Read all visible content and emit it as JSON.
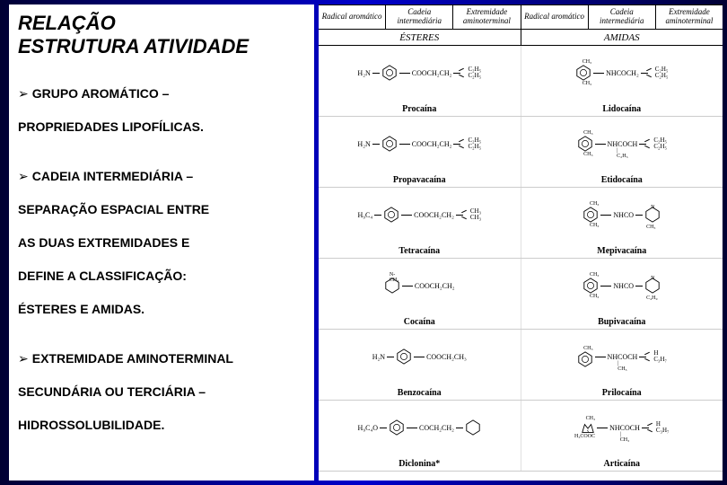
{
  "left": {
    "title_line1": "RELAÇÃO",
    "title_line2": "ESTRUTURA ATIVIDADE",
    "b1": "GRUPO AROMÁTICO –",
    "t1": "PROPRIEDADES LIPOFÍLICAS.",
    "b2": "CADEIA INTERMEDIÁRIA –",
    "t2": "SEPARAÇÃO ESPACIAL ENTRE",
    "t3": "AS DUAS EXTREMIDADES E",
    "t4": "DEFINE A CLASSIFICAÇÃO:",
    "t5": "ÉSTERES E AMIDAS.",
    "b3": "EXTREMIDADE AMINOTERMINAL",
    "t6": "SECUNDÁRIA OU TERCIÁRIA –",
    "t7": "HIDROSSOLUBILIDADE."
  },
  "table": {
    "headers": [
      "Radical aromático",
      "Cadeia intermediária",
      "Extremidade aminoterminal",
      "Radical aromático",
      "Cadeia intermediária",
      "Extremidade aminoterminal"
    ],
    "sections": [
      "ÉSTERES",
      "AMIDAS"
    ],
    "rows": [
      {
        "left_name": "Procaína",
        "right_name": "Lidocaína",
        "left": {
          "pre": "H₂N",
          "mid": "COOCH₂CH₂",
          "n": [
            "C₂H₅",
            "C₂H₅"
          ]
        },
        "right": {
          "preTop": "CH₃",
          "preBot": "CH₃",
          "mid": "NHCOCH₂",
          "n": [
            "C₂H₅",
            "C₂H₅"
          ]
        }
      },
      {
        "left_name": "Propavacaína",
        "right_name": "Etidocaína",
        "left": {
          "pre": "H₂N",
          "mid": "COOCH₂CH₂",
          "preExtra": "C₂H₅O",
          "n": [
            "C₂H₅",
            "C₂H₅"
          ]
        },
        "right": {
          "preTop": "CH₃",
          "preBot": "CH₃",
          "mid": "NHCOCH",
          "midSub": "C₂H₅",
          "n": [
            "C₂H₅",
            "C₂H₅"
          ]
        }
      },
      {
        "left_name": "Tetracaína",
        "right_name": "Mepivacaína",
        "left": {
          "pre": "H₉C₄",
          "preN": "H",
          "mid": "COOCH₂CH₂",
          "n": [
            "CH₃",
            "CH₃"
          ]
        },
        "right": {
          "preTop": "CH₃",
          "preBot": "CH₃",
          "mid": "NHCO",
          "ring": true,
          "ringSub": "CH₃"
        }
      },
      {
        "left_name": "Cocaína",
        "right_name": "Bupivacaína",
        "left": {
          "bicycle": true,
          "mid": "COOCH₂CH₂",
          "bot": "COO"
        },
        "right": {
          "preTop": "CH₃",
          "preBot": "CH₃",
          "mid": "NHCO",
          "ring": true,
          "ringSub": "C₄H₉"
        }
      },
      {
        "left_name": "Benzocaína",
        "right_name": "Prilocaína",
        "left": {
          "pre": "H₂N",
          "mid": "COOCH₂CH₃"
        },
        "right": {
          "preTop": "CH₃",
          "mid": "NHCOCH",
          "midSub": "CH₃",
          "n": [
            "H",
            "C₃H₇"
          ]
        }
      },
      {
        "left_name": "Diclonina*",
        "right_name": "Articaína",
        "left": {
          "pre": "H₉C₄O",
          "mid": "COCH₂CH₂",
          "ringN": true
        },
        "right": {
          "thio": true,
          "preTop": "CH₃",
          "preBot": "H₃COOC",
          "mid": "NHCOCH",
          "midSub": "CH₃",
          "n": [
            "H",
            "C₃H₇"
          ]
        }
      }
    ]
  }
}
